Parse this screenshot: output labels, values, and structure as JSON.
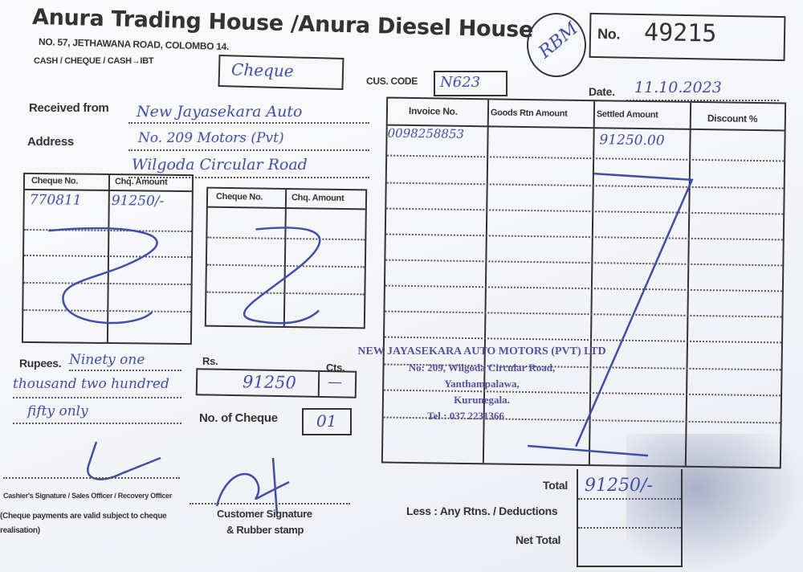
{
  "header": {
    "company": "Anura Trading House /Anura Diesel House",
    "address": "NO. 57, JETHAWANA ROAD, COLOMBO 14.",
    "payment_modes": "CASH / CHEQUE / CASH→IBT",
    "payment_mode_value": "Cheque",
    "cus_code_label": "CUS. CODE",
    "cus_code_value": "N623",
    "receipt_no_label": "No.",
    "receipt_no": "49215",
    "initials": "RBM",
    "date_label": "Date.",
    "date_value": "11.10.2023"
  },
  "customer": {
    "received_from_label": "Received from",
    "received_from_value": "New Jayasekara Auto",
    "address_label": "Address",
    "address_line1": "No. 209   Motors (Pvt)",
    "address_line2": "Wilgoda Circular Road"
  },
  "cheque_table_1": {
    "headers": [
      "Cheque No.",
      "Chq. Amount"
    ],
    "rows": [
      [
        "770811",
        "91250/-"
      ]
    ]
  },
  "cheque_table_2": {
    "headers": [
      "Cheque No.",
      "Chq. Amount"
    ]
  },
  "invoice_table": {
    "headers": [
      "Invoice No.",
      "Goods Rtn Amount",
      "Settled Amount",
      "Discount %"
    ],
    "rows": [
      [
        "0098258853",
        "",
        "91250.00",
        ""
      ]
    ]
  },
  "amount": {
    "rupees_label": "Rupees.",
    "rupees_words": [
      "Ninety one",
      "thousand two hundred",
      "fifty only"
    ],
    "rs_label": "Rs.",
    "cts_label": "Cts.",
    "rs_value": "91250",
    "cts_value": "—",
    "no_of_cheque_label": "No. of Cheque",
    "no_of_cheque_value": "01"
  },
  "stamp": {
    "lines": [
      "NEW JAYASEKARA AUTO MOTORS (PVT) LTD",
      "No: 209, Wilgoda Circular Road,",
      "Yanthampalawa,",
      "Kurunegala.",
      "Tel : 037 2231366"
    ]
  },
  "totals": {
    "total_label": "Total",
    "total_value": "91250/-",
    "less_label": "Less : Any Rtns. / Deductions",
    "net_total_label": "Net Total"
  },
  "signatures": {
    "cashier_label": "Cashier's Signature / Sales Officer / Recovery Officer",
    "cheque_note": "(Cheque payments are valid subject to cheque realisation)",
    "customer_label": "Customer Signature",
    "rubber_stamp_label": "& Rubber stamp"
  }
}
